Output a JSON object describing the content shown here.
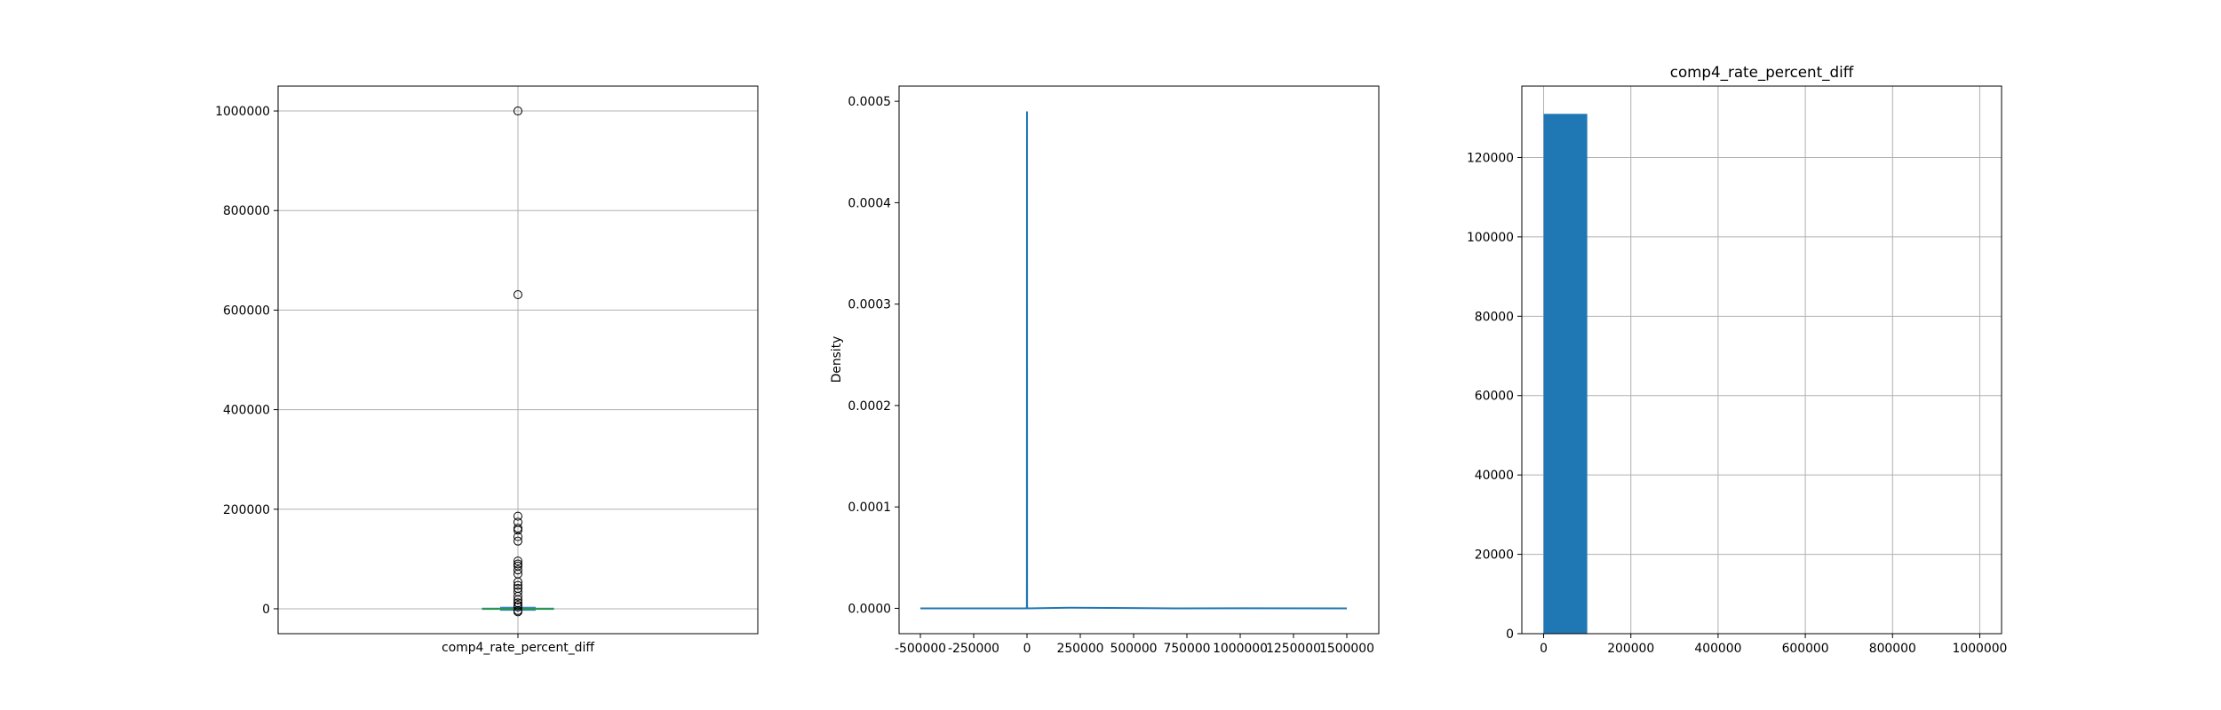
{
  "chart_data": [
    {
      "type": "box",
      "title": "",
      "xlabel": "comp4_rate_percent_diff",
      "ylabel": "",
      "categories": [
        "comp4_rate_percent_diff"
      ],
      "ylim": [
        -50000,
        1050000
      ],
      "yticks": [
        0,
        200000,
        400000,
        600000,
        800000,
        1000000
      ],
      "grid": true,
      "box": {
        "q1": -1200,
        "median": 0,
        "q3": 1200,
        "whisker_low": -3000,
        "whisker_high": 3000
      },
      "outliers": [
        1000000,
        631000,
        186000,
        174000,
        162000,
        158000,
        145000,
        136000,
        96000,
        90000,
        86000,
        78000,
        70000,
        54000,
        47000,
        41000,
        34000,
        25000,
        18000,
        12000,
        7000,
        3500,
        -3500,
        -6000
      ],
      "colors": {
        "box": "#1f77b4",
        "median": "#2ca02c",
        "outlier": "#000000",
        "grid": "#b0b0b0"
      }
    },
    {
      "type": "line",
      "title": "",
      "xlabel": "",
      "ylabel": "Density",
      "xlim": [
        -600000,
        1650000
      ],
      "ylim": [
        -2.5e-05,
        0.000515
      ],
      "xticks": [
        -500000,
        -250000,
        0,
        250000,
        500000,
        750000,
        1000000,
        1250000,
        1500000
      ],
      "yticks": [
        0.0,
        0.0001,
        0.0002,
        0.0003,
        0.0004,
        0.0005
      ],
      "ytick_labels": [
        "0.0000",
        "0.0001",
        "0.0002",
        "0.0003",
        "0.0004",
        "0.0005"
      ],
      "grid": false,
      "series": [
        {
          "x": [
            -500000,
            -1500,
            -500,
            0,
            500,
            1500,
            200000,
            700000,
            1000000,
            1500000
          ],
          "y": [
            0.0,
            0.0,
            3e-06,
            0.00049,
            3e-06,
            0.0,
            6e-07,
            0.0,
            1e-07,
            0.0
          ],
          "color": "#1f77b4"
        }
      ]
    },
    {
      "type": "bar",
      "title": "comp4_rate_percent_diff",
      "xlabel": "",
      "ylabel": "",
      "xlim": [
        -50000,
        1050000
      ],
      "ylim": [
        0,
        138000
      ],
      "xticks": [
        0,
        200000,
        400000,
        600000,
        800000,
        1000000
      ],
      "yticks": [
        0,
        20000,
        40000,
        60000,
        80000,
        100000,
        120000
      ],
      "bin_edges": [
        0,
        100000,
        200000,
        300000,
        400000,
        500000,
        600000,
        700000,
        800000,
        900000,
        1000000
      ],
      "values": [
        131000,
        10,
        0,
        0,
        0,
        0,
        1,
        0,
        0,
        1
      ],
      "grid": true,
      "colors": {
        "bar": "#1f77b4",
        "grid": "#b0b0b0"
      }
    }
  ]
}
